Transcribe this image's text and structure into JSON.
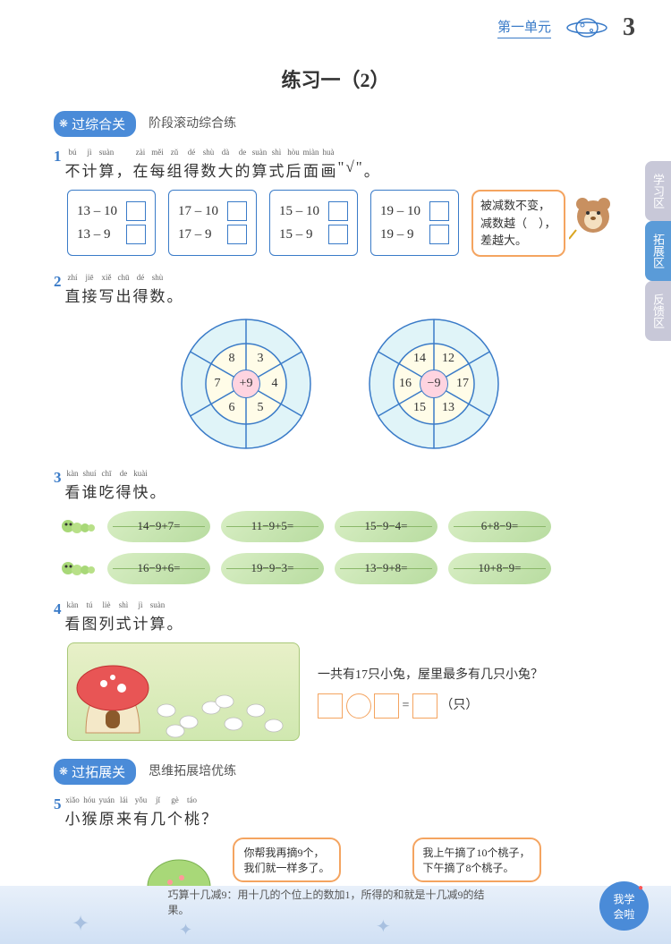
{
  "header": {
    "unit": "第一单元",
    "page": "3"
  },
  "title": "练习一（2）",
  "side_tabs": [
    "学习区",
    "拓展区",
    "反馈区"
  ],
  "section1": {
    "tag": "过综合关",
    "sub": "阶段滚动综合练"
  },
  "section2": {
    "tag": "过拓展关",
    "sub": "思维拓展培优练"
  },
  "q1": {
    "num": "1",
    "pinyin": [
      "bú",
      "jì",
      "suàn",
      "",
      "zài",
      "měi",
      "zǔ",
      "dé",
      "shù",
      "dà",
      "de",
      "suàn",
      "shì",
      "hòu",
      "miàn",
      "huà",
      "",
      "",
      ""
    ],
    "chars": [
      "不",
      "计",
      "算",
      "，",
      "在",
      "每",
      "组",
      "得",
      "数",
      "大",
      "的",
      "算",
      "式",
      "后",
      "面",
      "画",
      "\"",
      "√",
      "\"",
      "。"
    ],
    "groups": [
      [
        "13 – 10",
        "13 – 9"
      ],
      [
        "17 – 10",
        "17 – 9"
      ],
      [
        "15 – 10",
        "15 – 9"
      ],
      [
        "19 – 10",
        "19 – 9"
      ]
    ],
    "bubble": "被减数不变，\n减数越（　），\n差越大。"
  },
  "q2": {
    "num": "2",
    "pinyin": [
      "zhí",
      "jiē",
      "xiě",
      "chū",
      "dé",
      "shù"
    ],
    "chars": [
      "直",
      "接",
      "写",
      "出",
      "得",
      "数",
      "。"
    ],
    "wheel1": {
      "center": "+9",
      "inner": [
        "3",
        "4",
        "5",
        "6",
        "7",
        "8"
      ]
    },
    "wheel2": {
      "center": "−9",
      "inner": [
        "12",
        "17",
        "13",
        "15",
        "16",
        "14"
      ]
    }
  },
  "q3": {
    "num": "3",
    "pinyin": [
      "kàn",
      "shuí",
      "chī",
      "de",
      "kuài"
    ],
    "chars": [
      "看",
      "谁",
      "吃",
      "得",
      "快",
      "。"
    ],
    "rows": [
      [
        "14−9+7=",
        "11−9+5=",
        "15−9−4=",
        "6+8−9="
      ],
      [
        "16−9+6=",
        "19−9−3=",
        "13−9+8=",
        "10+8−9="
      ]
    ]
  },
  "q4": {
    "num": "4",
    "pinyin": [
      "kàn",
      "tú",
      "liè",
      "shì",
      "jì",
      "suàn"
    ],
    "chars": [
      "看",
      "图",
      "列",
      "式",
      "计",
      "算",
      "。"
    ],
    "text": "一共有17只小兔，屋里最多有几只小兔？",
    "unit": "（只）"
  },
  "q5": {
    "num": "5",
    "pinyin": [
      "xiǎo",
      "hóu",
      "yuán",
      "lái",
      "yǒu",
      "jǐ",
      "gè",
      "táo"
    ],
    "chars": [
      "小",
      "猴",
      "原",
      "来",
      "有",
      "几",
      "个",
      "桃",
      "？"
    ],
    "bubble1": "你帮我再摘9个，\n我们就一样多了。",
    "bubble2": "我上午摘了10个桃子，\n下午摘了8个桃子。"
  },
  "footer": {
    "tip": "巧算十几减9：用十几的个位上的数加1，所得的和就是十几减9的结果。",
    "badge": "我学\n会啦"
  }
}
